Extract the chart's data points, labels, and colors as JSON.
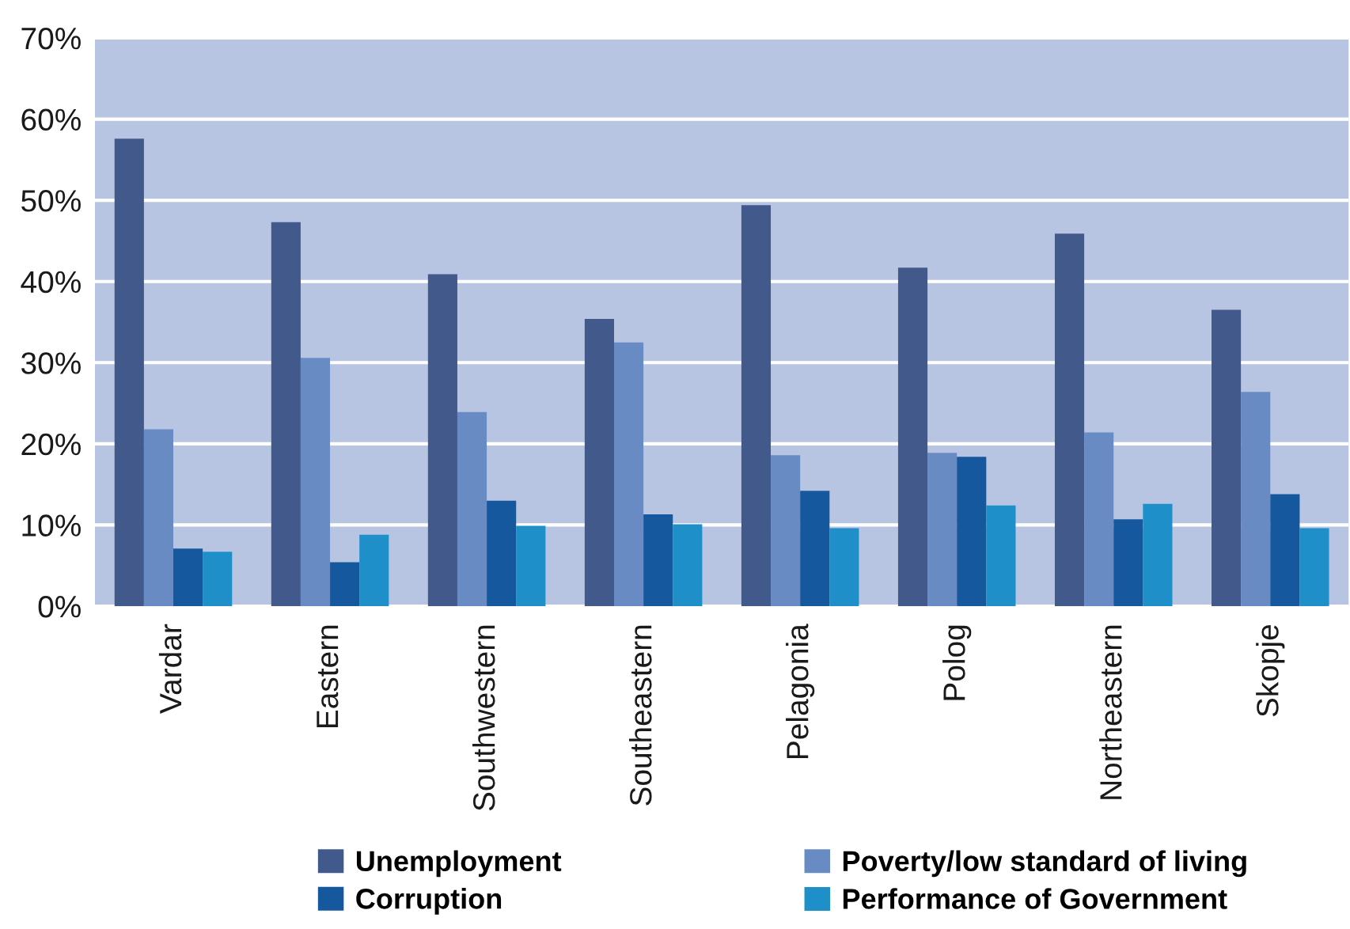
{
  "chart_data": {
    "type": "bar",
    "categories": [
      "Vardar",
      "Eastern",
      "Southwestern",
      "Southeastern",
      "Pelagonia",
      "Polog",
      "Northeastern",
      "Skopje"
    ],
    "series": [
      {
        "name": "Unemployment",
        "color": "#41598b",
        "values": [
          57.6,
          47.3,
          40.9,
          35.4,
          49.4,
          41.7,
          45.9,
          36.5
        ]
      },
      {
        "name": "Poverty/low standard of living",
        "color": "#698bc4",
        "values": [
          21.8,
          30.6,
          23.9,
          32.5,
          18.6,
          18.9,
          21.4,
          26.4
        ]
      },
      {
        "name": "Corruption",
        "color": "#15589e",
        "values": [
          7.1,
          5.4,
          13.0,
          11.3,
          14.2,
          18.4,
          10.7,
          13.8
        ]
      },
      {
        "name": "Performance of Government",
        "color": "#1f8fca",
        "values": [
          6.7,
          8.8,
          9.9,
          10.1,
          9.6,
          12.4,
          12.6,
          9.6
        ]
      }
    ],
    "ylim": [
      0,
      70
    ],
    "yticks": [
      {
        "value": 0,
        "label": "0%"
      },
      {
        "value": 10,
        "label": "10%"
      },
      {
        "value": 20,
        "label": "20%"
      },
      {
        "value": 30,
        "label": "30%"
      },
      {
        "value": 40,
        "label": "40%"
      },
      {
        "value": 50,
        "label": "50%"
      },
      {
        "value": 60,
        "label": "60%"
      },
      {
        "value": 70,
        "label": "70%"
      }
    ],
    "grid": "y",
    "legend": "bottom"
  }
}
